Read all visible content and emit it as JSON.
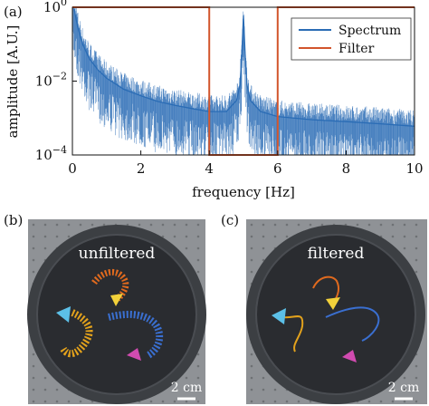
{
  "panels": {
    "a": {
      "label": "(a)"
    },
    "b": {
      "label": "(b)",
      "caption": "unfiltered",
      "scale": "2 cm"
    },
    "c": {
      "label": "(c)",
      "caption": "filtered",
      "scale": "2 cm"
    }
  },
  "chart_data": {
    "type": "line",
    "xlabel": "frequency [Hz]",
    "ylabel": "amplitude [A.U.]",
    "xlim": [
      0,
      10
    ],
    "ylim": [
      0.0001,
      1
    ],
    "yscale": "log",
    "x_ticks": [
      "0",
      "2",
      "4",
      "6",
      "8",
      "10"
    ],
    "y_ticks": [
      {
        "base": "10",
        "exp": "0"
      },
      {
        "base": "10",
        "exp": "−2"
      },
      {
        "base": "10",
        "exp": "−4"
      }
    ],
    "grid": false,
    "legend_position": "top-right",
    "series": [
      {
        "name": "Spectrum",
        "color": "#2a6cb5",
        "x": [
          0.05,
          0.15,
          0.3,
          0.5,
          0.75,
          1.0,
          1.5,
          2.0,
          2.5,
          3.0,
          3.5,
          4.0,
          4.5,
          4.8,
          4.9,
          4.95,
          5.0,
          5.05,
          5.1,
          5.2,
          5.5,
          6.0,
          7.0,
          8.0,
          9.0,
          10.0
        ],
        "y": [
          0.9,
          0.3,
          0.1,
          0.04,
          0.02,
          0.012,
          0.006,
          0.004,
          0.0028,
          0.0022,
          0.0018,
          0.0015,
          0.0015,
          0.003,
          0.008,
          0.05,
          0.6,
          0.05,
          0.008,
          0.003,
          0.0015,
          0.0011,
          0.0009,
          0.0008,
          0.0007,
          0.0006
        ]
      },
      {
        "name": "Filter",
        "color": "#d2552c",
        "x": [
          0,
          4,
          4,
          6,
          6,
          10
        ],
        "y": [
          1,
          1,
          0.0001,
          0.0001,
          1,
          1
        ]
      }
    ]
  }
}
